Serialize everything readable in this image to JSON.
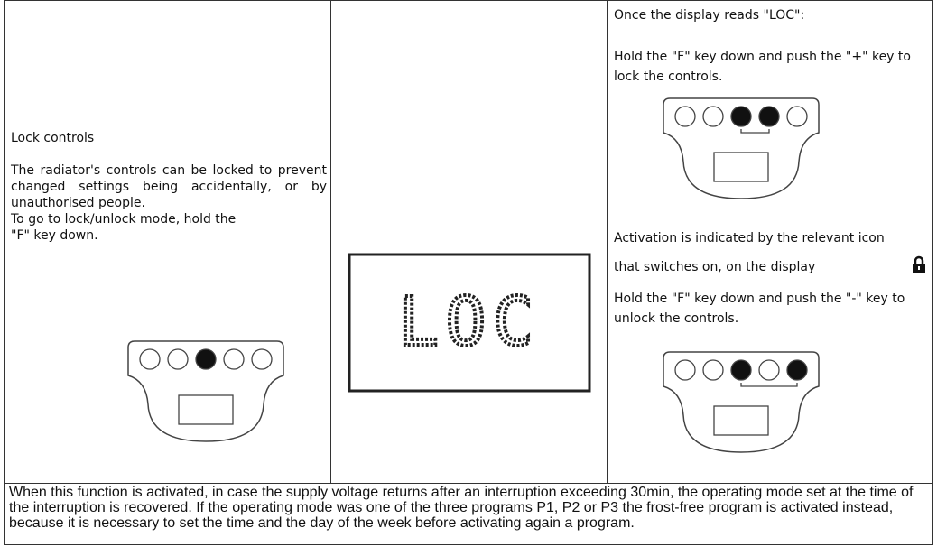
{
  "left": {
    "heading": "Lock controls",
    "paragraph": "The radiator's controls can be locked to prevent changed settings being accidentally, or by unauthorised people.",
    "instruction": "To go to lock/unlock mode, hold the \"F\" key down."
  },
  "middle": {
    "display": "LOC"
  },
  "right": {
    "intro": "Once the display reads \"LOC\":",
    "lock_step": "Hold the \"F\" key down and push the \"+\" key to lock the controls.",
    "activation": "Activation is indicated by the relevant icon that switches on, on the display",
    "unlock_step": "Hold the \"F\" key down and push the \"-\" key to unlock the controls."
  },
  "footer": {
    "note": "When this function is activated, in case the supply voltage returns after an interruption exceeding 30min, the operating mode set at the time of the interruption is recovered. If the operating mode was one of the three programs P1, P2 or P3 the frost-free program is activated instead, because it is necessary to set the time and the day of the week before activating again a program."
  }
}
